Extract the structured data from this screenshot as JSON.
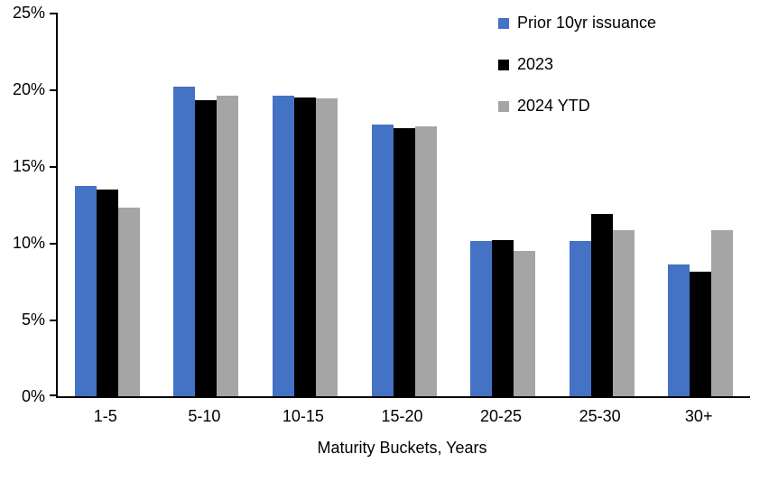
{
  "chart_data": {
    "type": "bar",
    "title": "",
    "xlabel": "Maturity Buckets, Years",
    "ylabel": "",
    "ylim": [
      0,
      25
    ],
    "ytick_values": [
      0,
      5,
      10,
      15,
      20,
      25
    ],
    "ytick_labels": [
      "0%",
      "5%",
      "10%",
      "15%",
      "20%",
      "25%"
    ],
    "grid": false,
    "legend_position": "top-right",
    "categories": [
      "1-5",
      "5-10",
      "10-15",
      "15-20",
      "20-25",
      "25-30",
      "30+"
    ],
    "series": [
      {
        "name": "Prior 10yr issuance",
        "color": "#4472C4",
        "values": [
          13.7,
          20.2,
          19.6,
          17.7,
          10.1,
          10.1,
          8.6
        ]
      },
      {
        "name": "2023",
        "color": "#000000",
        "values": [
          13.5,
          19.3,
          19.5,
          17.5,
          10.2,
          11.9,
          8.1
        ]
      },
      {
        "name": "2024 YTD",
        "color": "#A5A5A5",
        "values": [
          12.3,
          19.6,
          19.4,
          17.6,
          9.5,
          10.8,
          10.8
        ]
      }
    ]
  }
}
